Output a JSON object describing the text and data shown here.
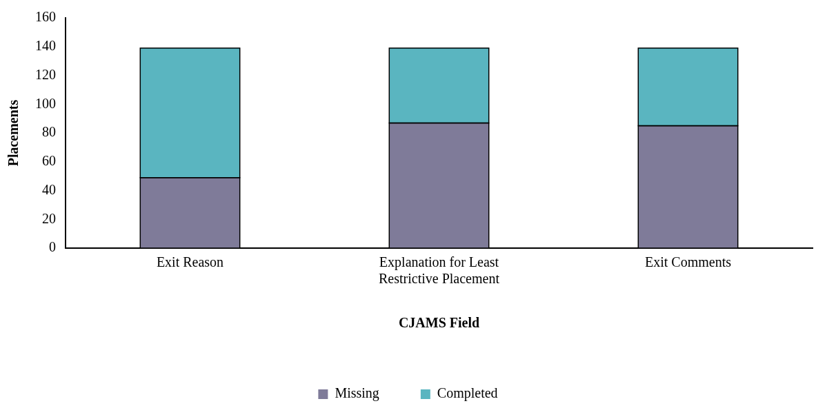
{
  "chart_data": {
    "type": "bar",
    "stacked": true,
    "xlabel": "CJAMS Field",
    "ylabel": "Placements",
    "categories": [
      "Exit Reason",
      "Explanation for Least Restrictive Placement",
      "Exit Comments"
    ],
    "series": [
      {
        "name": "Missing",
        "color": "#7f7b99",
        "values": [
          49,
          87,
          85
        ]
      },
      {
        "name": "Completed",
        "color": "#5ab5c0",
        "values": [
          90,
          52,
          54
        ]
      }
    ],
    "ylim": [
      0,
      160
    ],
    "yticks": [
      0,
      20,
      40,
      60,
      80,
      100,
      120,
      140,
      160
    ],
    "grid": false,
    "legend": "bottom"
  }
}
